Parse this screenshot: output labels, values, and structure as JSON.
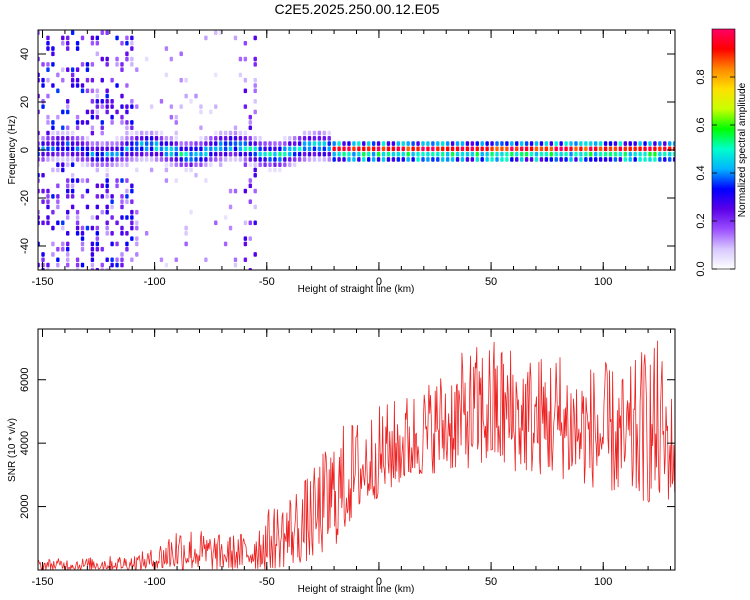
{
  "title": "C2E5.2025.250.00.12.E05",
  "chart_data": [
    {
      "type": "heatmap",
      "name": "spectrogram",
      "xlabel": "Height of straight line (km)",
      "ylabel": "Frequency (Hz)",
      "xlim": [
        -152,
        132
      ],
      "ylim": [
        -50,
        50
      ],
      "xticks": [
        -150,
        -100,
        -50,
        0,
        50,
        100
      ],
      "yticks": [
        -40,
        -20,
        0,
        20,
        40
      ],
      "colorbar": {
        "label": "Normalized spectral amplitude",
        "range": [
          0,
          1
        ],
        "ticks": [
          0.0,
          0.2,
          0.4,
          0.6,
          0.8
        ],
        "tick_labels": [
          "0.0",
          "0.2",
          "0.4",
          "0.6",
          "0.8"
        ],
        "colors": [
          "#ffffff",
          "#d8c8ff",
          "#9a4dff",
          "#5a00e8",
          "#0000ff",
          "#00b4ff",
          "#00ffcc",
          "#00ff00",
          "#c8ff00",
          "#ffe000",
          "#ff8800",
          "#ff0000",
          "#ff0066"
        ]
      },
      "signal_band": {
        "x_range": [
          -152,
          132
        ],
        "center_hz": 0,
        "peak_after_km": -20,
        "description_values": {
          "noise_region_x_max": -110,
          "noise_mid_x_max": -60
        }
      }
    },
    {
      "type": "line",
      "name": "snr",
      "xlabel": "Height of straight line (km)",
      "ylabel": "SNR (10 * v/v)",
      "xlim": [
        -152,
        132
      ],
      "ylim": [
        0,
        7600
      ],
      "xticks": [
        -150,
        -100,
        -50,
        0,
        50,
        100
      ],
      "yticks": [
        2000,
        4000,
        6000
      ],
      "color": "#ee2222",
      "envelope": {
        "x": [
          -152,
          -130,
          -110,
          -100,
          -90,
          -80,
          -70,
          -60,
          -50,
          -40,
          -30,
          -20,
          -15,
          -10,
          0,
          10,
          20,
          30,
          40,
          50,
          60,
          70,
          80,
          90,
          100,
          110,
          120,
          125,
          130
        ],
        "low": [
          0,
          0,
          0,
          0,
          0,
          0,
          0,
          0,
          0,
          100,
          300,
          700,
          1200,
          1800,
          2300,
          2700,
          3000,
          3100,
          3200,
          3200,
          3100,
          3000,
          2900,
          2700,
          2500,
          2300,
          2100,
          2000,
          2200
        ],
        "high": [
          350,
          400,
          500,
          700,
          1500,
          1300,
          1100,
          1200,
          1900,
          2500,
          3100,
          4400,
          4700,
          4800,
          5200,
          5500,
          5900,
          6500,
          7000,
          7400,
          7200,
          6800,
          7100,
          6500,
          6600,
          6200,
          7300,
          7300,
          5700
        ]
      }
    }
  ]
}
